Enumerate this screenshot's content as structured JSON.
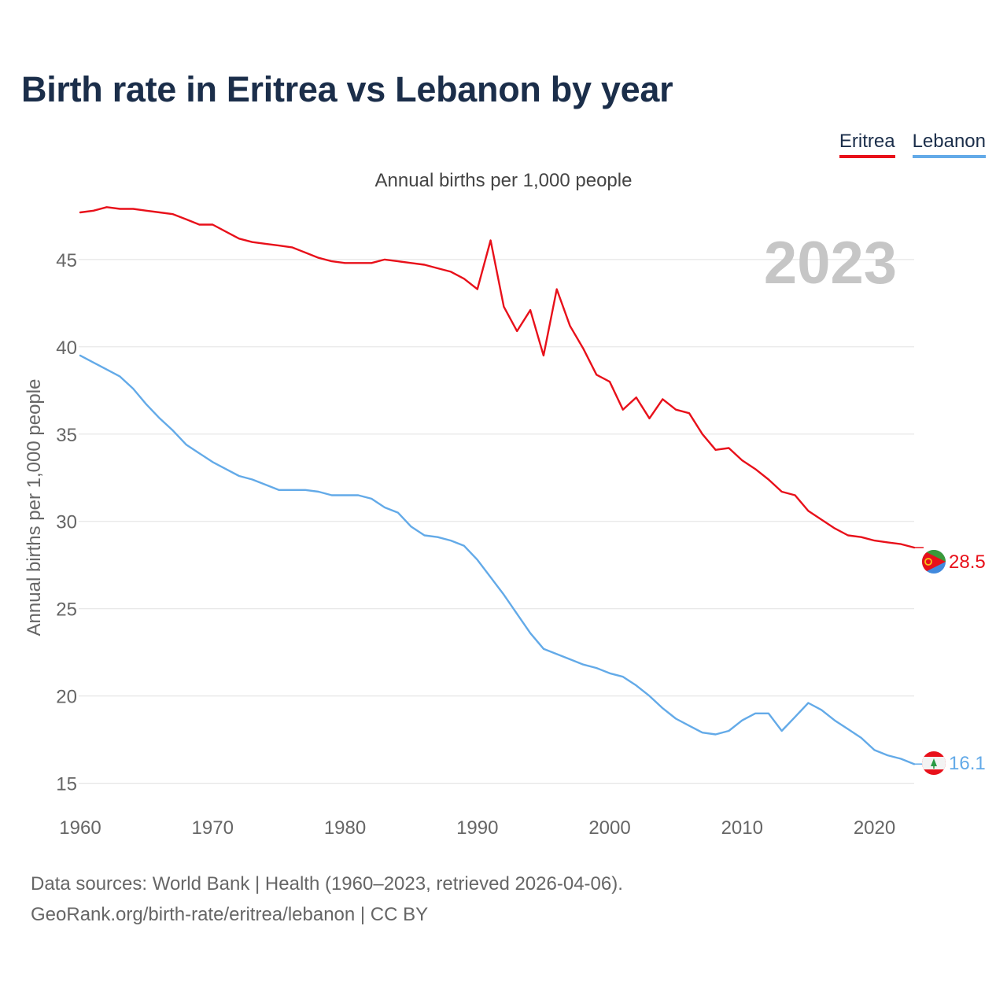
{
  "title": "Birth rate in Eritrea vs Lebanon by year",
  "subtitle": "Annual births per 1,000 people",
  "footer": {
    "line1": "Data sources: World Bank | Health (1960–2023, retrieved 2026-04-06).",
    "line2": "GeoRank.org/birth-rate/eritrea/lebanon | CC BY"
  },
  "colors": {
    "eritrea": "#e8101a",
    "lebanon": "#63aae8",
    "grid": "#e6e6e6",
    "axis_text": "#666666",
    "year": "#c6c6c6"
  },
  "chart_data": {
    "type": "line",
    "title": "Birth rate in Eritrea vs Lebanon by year",
    "ylabel": "Annual births per 1,000 people",
    "xlabel": "",
    "year_label": "2023",
    "xlim": [
      1960,
      2023
    ],
    "ylim": [
      13.9,
      48.6
    ],
    "yticks": [
      15,
      20,
      25,
      30,
      35,
      40,
      45
    ],
    "xticks": [
      1960,
      1970,
      1980,
      1990,
      2000,
      2010,
      2020
    ],
    "x": [
      1960,
      1961,
      1962,
      1963,
      1964,
      1965,
      1966,
      1967,
      1968,
      1969,
      1970,
      1971,
      1972,
      1973,
      1974,
      1975,
      1976,
      1977,
      1978,
      1979,
      1980,
      1981,
      1982,
      1983,
      1984,
      1985,
      1986,
      1987,
      1988,
      1989,
      1990,
      1991,
      1992,
      1993,
      1994,
      1995,
      1996,
      1997,
      1998,
      1999,
      2000,
      2001,
      2002,
      2003,
      2004,
      2005,
      2006,
      2007,
      2008,
      2009,
      2010,
      2011,
      2012,
      2013,
      2014,
      2015,
      2016,
      2017,
      2018,
      2019,
      2020,
      2021,
      2022,
      2023
    ],
    "series": [
      {
        "name": "Eritrea",
        "color": "#e8101a",
        "end_label": "28.5",
        "values": [
          47.7,
          47.8,
          48.0,
          47.9,
          47.9,
          47.8,
          47.7,
          47.6,
          47.3,
          47.0,
          47.0,
          46.6,
          46.2,
          46.0,
          45.9,
          45.8,
          45.7,
          45.4,
          45.1,
          44.9,
          44.8,
          44.8,
          44.8,
          45.0,
          44.9,
          44.8,
          44.7,
          44.5,
          44.3,
          43.9,
          43.3,
          46.1,
          42.3,
          40.9,
          42.1,
          39.5,
          43.3,
          41.2,
          39.9,
          38.4,
          38.0,
          36.4,
          37.1,
          35.9,
          37.0,
          36.4,
          36.2,
          35.0,
          34.1,
          34.2,
          33.5,
          33.0,
          32.4,
          31.7,
          31.5,
          30.6,
          30.1,
          29.6,
          29.2,
          29.1,
          28.9,
          28.8,
          28.7,
          28.5
        ]
      },
      {
        "name": "Lebanon",
        "color": "#63aae8",
        "end_label": "16.1",
        "values": [
          39.5,
          39.1,
          38.7,
          38.3,
          37.6,
          36.7,
          35.9,
          35.2,
          34.4,
          33.9,
          33.4,
          33.0,
          32.6,
          32.4,
          32.1,
          31.8,
          31.8,
          31.8,
          31.7,
          31.5,
          31.5,
          31.5,
          31.3,
          30.8,
          30.5,
          29.7,
          29.2,
          29.1,
          28.9,
          28.6,
          27.8,
          26.8,
          25.8,
          24.7,
          23.6,
          22.7,
          22.4,
          22.1,
          21.8,
          21.6,
          21.3,
          21.1,
          20.6,
          20.0,
          19.3,
          18.7,
          18.3,
          17.9,
          17.8,
          18.0,
          18.6,
          19.0,
          19.0,
          18.0,
          18.8,
          19.6,
          19.2,
          18.6,
          18.1,
          17.6,
          16.9,
          16.6,
          16.4,
          16.1
        ]
      }
    ]
  }
}
